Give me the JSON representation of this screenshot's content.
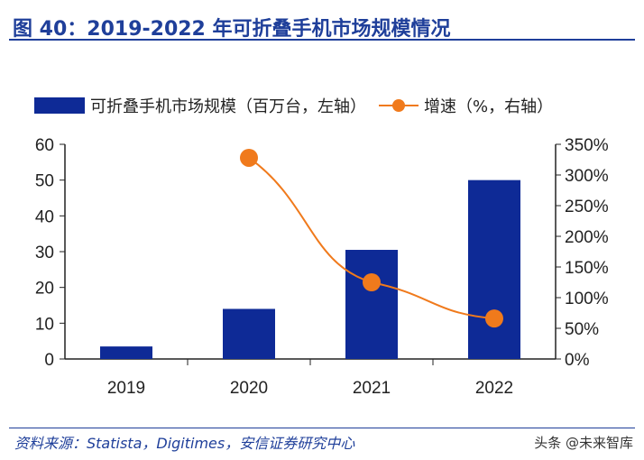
{
  "title": "图 40：2019-2022 年可折叠手机市场规模情况",
  "source": "资料来源：Statista，Digitimes，安信证券研究中心",
  "watermark": "头条 @未来智库",
  "chart_data": {
    "type": "bar+line",
    "categories": [
      "2019",
      "2020",
      "2021",
      "2022"
    ],
    "series": [
      {
        "name": "可折叠手机市场规模（百万台，左轴）",
        "type": "bar",
        "axis": "left",
        "color": "#0e2a96",
        "values": [
          3.5,
          14,
          30.5,
          50
        ]
      },
      {
        "name": "增速（%，右轴）",
        "type": "line",
        "axis": "right",
        "color": "#f07a1c",
        "values": [
          null,
          328,
          125,
          66
        ]
      }
    ],
    "y_left": {
      "range": [
        0,
        60
      ],
      "ticks": [
        "0",
        "10",
        "20",
        "30",
        "40",
        "50",
        "60"
      ]
    },
    "y_right": {
      "range": [
        0,
        350
      ],
      "ticks": [
        "0%",
        "50%",
        "100%",
        "150%",
        "200%",
        "250%",
        "300%",
        "350%"
      ]
    },
    "grid": false,
    "legend": "top"
  }
}
